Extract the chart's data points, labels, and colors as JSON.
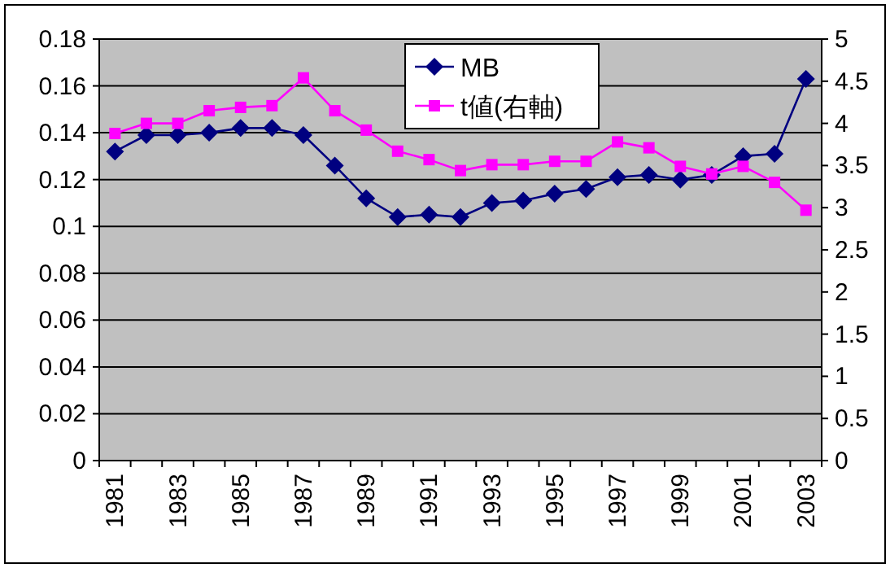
{
  "chart_data": {
    "type": "line",
    "categories": [
      "1981",
      null,
      "1983",
      null,
      "1985",
      null,
      "1987",
      null,
      "1989",
      null,
      "1991",
      null,
      "1993",
      null,
      "1995",
      null,
      "1997",
      null,
      "1999",
      null,
      "2001",
      null,
      "2003"
    ],
    "series": [
      {
        "name": "MB",
        "color": "#000080",
        "marker": "diamond",
        "values": [
          0.132,
          0.139,
          0.139,
          0.14,
          0.142,
          0.142,
          0.139,
          0.126,
          0.112,
          0.104,
          0.105,
          0.104,
          0.11,
          0.111,
          0.114,
          0.116,
          0.121,
          0.122,
          0.12,
          0.122,
          0.13,
          0.131,
          0.163
        ]
      },
      {
        "name": "t値(右軸)",
        "color": "#ff00ff",
        "marker": "square",
        "axis": "y2",
        "values": [
          3.88,
          4.0,
          4.0,
          4.15,
          4.19,
          4.21,
          4.54,
          4.15,
          3.92,
          3.67,
          3.57,
          3.44,
          3.51,
          3.51,
          3.55,
          3.55,
          3.78,
          3.71,
          3.49,
          3.4,
          3.49,
          3.3,
          2.97
        ]
      }
    ],
    "ylim": [
      0,
      0.18
    ],
    "yticks": [
      0,
      0.02,
      0.04,
      0.06,
      0.08,
      0.1,
      0.12,
      0.14,
      0.16,
      0.18
    ],
    "y2lim": [
      0,
      5
    ],
    "y2ticks": [
      0,
      0.5,
      1,
      1.5,
      2,
      2.5,
      3,
      3.5,
      4,
      4.5,
      5
    ],
    "grid": "y",
    "legend": "top right"
  }
}
